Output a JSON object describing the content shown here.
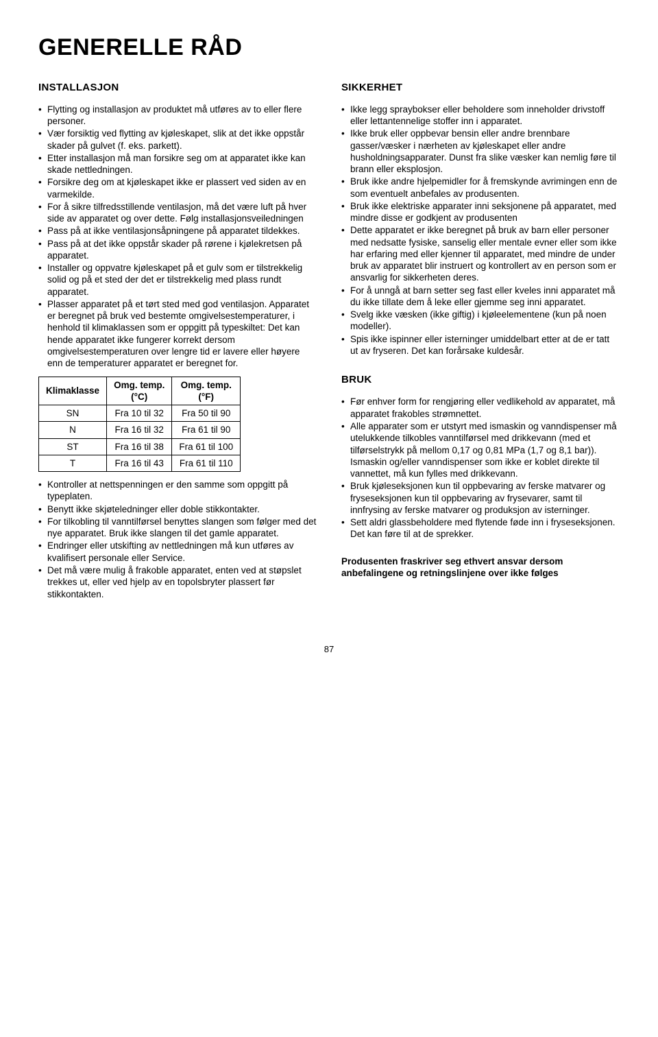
{
  "page_title": "GENERELLE RÅD",
  "page_number": "87",
  "left": {
    "installasjon_heading": "INSTALLASJON",
    "installasjon_items": [
      "Flytting og installasjon av produktet må utføres av to eller flere personer.",
      "Vær forsiktig ved flytting av kjøleskapet, slik at det ikke oppstår skader på gulvet (f. eks. parkett).",
      "Etter installasjon må man forsikre seg om at apparatet ikke kan skade nettledningen.",
      "Forsikre deg om at kjøleskapet ikke er plassert ved siden av en varmekilde.",
      "For å sikre tilfredsstillende ventilasjon, må det være luft på hver side av apparatet og over dette. Følg installasjonsveiledningen",
      "Pass på at ikke ventilasjonsåpningene på apparatet tildekkes.",
      "Pass på at det ikke oppstår skader på rørene i kjølekretsen på apparatet.",
      "Installer og oppvatre kjøleskapet på et gulv som er tilstrekkelig solid og på et sted der det er tilstrekkelig med plass rundt apparatet.",
      "Plasser apparatet på et tørt sted med god ventilasjon. Apparatet er beregnet på bruk ved bestemte omgivelsestemperaturer, i henhold til klimaklassen som er oppgitt på typeskiltet: Det kan hende apparatet ikke fungerer korrekt dersom omgivelsestemperaturen over lengre tid er lavere eller høyere enn de temperaturer apparatet er beregnet for."
    ],
    "table": {
      "headers": [
        "Klimaklasse",
        "Omg. temp.\n(°C)",
        "Omg. temp.\n(°F)"
      ],
      "rows": [
        [
          "SN",
          "Fra 10 til 32",
          "Fra 50 til 90"
        ],
        [
          "N",
          "Fra 16 til 32",
          "Fra 61 til 90"
        ],
        [
          "ST",
          "Fra 16 til 38",
          "Fra 61 til 100"
        ],
        [
          "T",
          "Fra 16 til 43",
          "Fra 61 til 110"
        ]
      ]
    },
    "installasjon_items2": [
      "Kontroller at nettspenningen er den samme som oppgitt på typeplaten.",
      "Benytt ikke skjøteledninger eller doble stikkontakter.",
      "For tilkobling til vanntilførsel benyttes slangen som følger med det nye apparatet. Bruk ikke slangen til det gamle apparatet.",
      "Endringer eller utskifting av nettledningen må kun utføres av kvalifisert personale eller Service.",
      "Det må være mulig å frakoble apparatet, enten ved at støpslet trekkes ut, eller ved hjelp av en topolsbryter plassert før stikkontakten."
    ]
  },
  "right": {
    "sikkerhet_heading": "SIKKERHET",
    "sikkerhet_items": [
      "Ikke legg spraybokser eller beholdere som inneholder drivstoff eller lettantennelige stoffer inn i apparatet.",
      "Ikke bruk eller oppbevar bensin eller andre brennbare gasser/væsker i nærheten av kjøleskapet eller andre husholdningsapparater. Dunst fra slike væsker kan nemlig føre til brann eller eksplosjon.",
      "Bruk ikke andre hjelpemidler for å fremskynde avrimingen enn de som eventuelt anbefales av produsenten.",
      "Bruk ikke elektriske apparater inni seksjonene på apparatet, med mindre disse er godkjent av produsenten",
      "Dette apparatet er ikke beregnet på bruk av barn eller personer med nedsatte fysiske, sanselig eller mentale evner eller som ikke har erfaring med eller kjenner til apparatet, med mindre de under bruk av apparatet blir instruert og kontrollert av en person som er ansvarlig for sikkerheten deres.",
      "For å unngå at barn setter seg fast eller kveles inni apparatet må du ikke tillate dem å leke eller gjemme seg inni apparatet.",
      "Svelg ikke væsken (ikke giftig) i kjøleelementene (kun på noen modeller).",
      "Spis ikke ispinner eller isterninger umiddelbart etter at de er tatt ut av fryseren. Det kan forårsake kuldesår."
    ],
    "bruk_heading": "BRUK",
    "bruk_items": [
      "Før enhver form for rengjøring eller vedlikehold av apparatet, må apparatet frakobles strømnettet.",
      "Alle apparater som er utstyrt med ismaskin og vanndispenser må utelukkende tilkobles vanntilførsel med drikkevann (med et tilførselstrykk på mellom 0,17 og 0,81 MPa (1,7 og 8,1 bar)). Ismaskin og/eller vanndispenser som ikke er koblet direkte til vannettet, må kun fylles med drikkevann.",
      "Bruk kjøleseksjonen kun til oppbevaring av ferske matvarer og fryseseksjonen kun til oppbevaring av frysevarer, samt til innfrysing av ferske matvarer og produksjon av isterninger.",
      "Sett aldri glassbeholdere med flytende føde inn i fryseseksjonen. Det kan føre til at de sprekker."
    ],
    "disclaimer": "Produsenten fraskriver seg ethvert ansvar dersom anbefalingene og retningslinjene over ikke følges"
  }
}
